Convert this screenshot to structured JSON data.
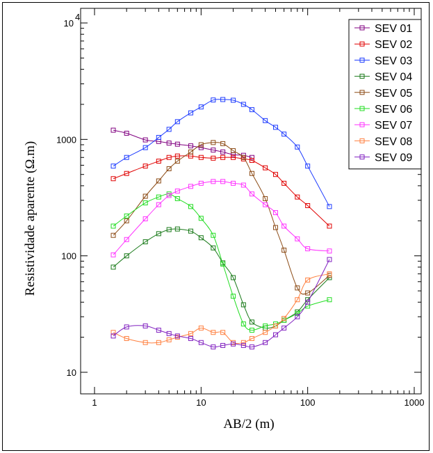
{
  "chart_data": {
    "type": "line",
    "xlabel": "AB/2 (m)",
    "ylabel": "Resistividade aparente (Ω.m)",
    "xscale": "log",
    "yscale": "log",
    "xlim": [
      1,
      1000
    ],
    "ylim": [
      10,
      10000
    ],
    "xtick_labels": [
      "1",
      "10",
      "100",
      "1000"
    ],
    "ytick_labels": [
      {
        "value": 10,
        "text": "10"
      },
      {
        "value": 100,
        "text": "100"
      },
      {
        "value": 1000,
        "text": "1000"
      },
      {
        "value": 10000,
        "base": "10",
        "exp": "4"
      }
    ],
    "legend_position": "top-right",
    "grid": false,
    "series": [
      {
        "name": "SEV 01",
        "color": "#800080",
        "x": [
          1.5,
          2,
          3,
          4,
          5,
          6,
          8,
          10,
          13,
          16,
          20,
          25,
          30
        ],
        "y": [
          1200,
          1130,
          990,
          960,
          930,
          910,
          880,
          850,
          810,
          780,
          740,
          730,
          700
        ]
      },
      {
        "name": "SEV 02",
        "color": "#e00000",
        "x": [
          1.5,
          2,
          3,
          4,
          5,
          6,
          8,
          10,
          13,
          16,
          20,
          25,
          30,
          40,
          50,
          60,
          80,
          100,
          160
        ],
        "y": [
          460,
          510,
          590,
          650,
          700,
          720,
          720,
          700,
          690,
          700,
          700,
          680,
          660,
          570,
          500,
          420,
          320,
          270,
          180
        ]
      },
      {
        "name": "SEV 03",
        "color": "#1e3cff",
        "x": [
          1.5,
          2,
          3,
          4,
          5,
          6,
          8,
          10,
          13,
          16,
          20,
          25,
          30,
          40,
          50,
          60,
          80,
          100,
          160
        ],
        "y": [
          590,
          700,
          850,
          1040,
          1220,
          1420,
          1690,
          1900,
          2180,
          2200,
          2170,
          2000,
          1800,
          1450,
          1270,
          1110,
          860,
          590,
          265
        ]
      },
      {
        "name": "SEV 04",
        "color": "#1a7a1a",
        "x": [
          1.5,
          2,
          3,
          4,
          5,
          6,
          8,
          10,
          13,
          16,
          20,
          25,
          30,
          40,
          50,
          60,
          80,
          100,
          160
        ],
        "y": [
          80,
          100,
          132,
          155,
          168,
          170,
          163,
          143,
          117,
          87,
          65,
          38,
          27,
          24,
          25,
          28,
          33,
          42,
          65
        ]
      },
      {
        "name": "SEV 05",
        "color": "#8b4a14",
        "x": [
          1.5,
          2,
          3,
          4,
          5,
          6,
          8,
          10,
          13,
          16,
          20,
          25,
          30,
          40,
          50,
          60,
          80,
          100,
          160
        ],
        "y": [
          150,
          200,
          325,
          440,
          560,
          650,
          780,
          900,
          940,
          920,
          800,
          700,
          510,
          310,
          175,
          112,
          53,
          48,
          68
        ]
      },
      {
        "name": "SEV 06",
        "color": "#22dd22",
        "x": [
          1.5,
          2,
          3,
          4,
          5,
          6,
          8,
          10,
          13,
          16,
          20,
          25,
          30,
          40,
          50,
          60,
          80,
          100,
          160
        ],
        "y": [
          180,
          220,
          285,
          320,
          340,
          310,
          265,
          210,
          150,
          85,
          45,
          26,
          23,
          25,
          26,
          28,
          32,
          37,
          42
        ]
      },
      {
        "name": "SEV 07",
        "color": "#ff33ff",
        "x": [
          1.5,
          2,
          3,
          4,
          5,
          6,
          8,
          10,
          13,
          16,
          20,
          25,
          30,
          40,
          50,
          60,
          80,
          100,
          160
        ],
        "y": [
          102,
          138,
          208,
          275,
          330,
          360,
          395,
          420,
          435,
          435,
          420,
          405,
          340,
          275,
          235,
          180,
          140,
          115,
          110
        ]
      },
      {
        "name": "SEV 08",
        "color": "#ff8040",
        "x": [
          1.5,
          2,
          3,
          4,
          5,
          6,
          8,
          10,
          13,
          16,
          20,
          25,
          30,
          40,
          50,
          60,
          80,
          100,
          160
        ],
        "y": [
          22,
          19.5,
          18,
          18,
          19,
          20,
          21.5,
          24,
          22,
          22,
          18,
          18,
          19.5,
          22,
          25,
          29,
          42,
          62,
          70
        ]
      },
      {
        "name": "SEV 09",
        "color": "#8020c0",
        "x": [
          1.5,
          2,
          3,
          4,
          5,
          6,
          8,
          10,
          13,
          16,
          20,
          25,
          30,
          40,
          50,
          60,
          80,
          100,
          160
        ],
        "y": [
          20.5,
          24.5,
          25,
          23,
          21.5,
          20.5,
          19.5,
          18,
          16.5,
          17,
          17.5,
          17,
          16.5,
          18,
          21,
          24,
          30,
          40,
          93
        ]
      }
    ]
  }
}
